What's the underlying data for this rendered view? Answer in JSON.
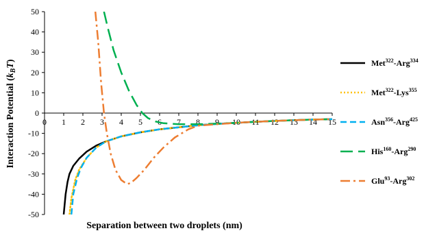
{
  "chart_data": {
    "type": "line",
    "title": "",
    "xlabel": "Separation between two droplets (nm)",
    "ylabel": "Interaction Potential (k_B T)",
    "ylabel_parts": {
      "main": "Interaction Potential (",
      "italic": "k",
      "sub": "B",
      "italic2": "T",
      "close": ")"
    },
    "xlim": [
      0,
      15
    ],
    "ylim": [
      -50,
      50
    ],
    "x_ticks": [
      "0",
      "1",
      "2",
      "3",
      "4",
      "5",
      "6",
      "7",
      "8",
      "9",
      "10",
      "11",
      "12",
      "13",
      "14",
      "15"
    ],
    "y_ticks": [
      "50",
      "40",
      "30",
      "20",
      "10",
      "0",
      "-10",
      "-20",
      "-30",
      "-40",
      "-50"
    ],
    "grid": false,
    "legend_position": "right",
    "series": [
      {
        "name": "Met322-Arg334",
        "label_parts": [
          "Met",
          "322",
          "-Arg",
          "334"
        ],
        "color": "#000000",
        "style": "solid",
        "x": [
          1.0,
          1.1,
          1.2,
          1.3,
          1.5,
          1.8,
          2.2,
          2.7,
          3.2,
          4,
          5,
          6,
          7,
          8,
          9,
          10,
          11,
          12,
          13,
          14,
          15
        ],
        "y": [
          -50,
          -40,
          -34,
          -30,
          -26,
          -22.5,
          -19,
          -16,
          -14,
          -11.5,
          -9.5,
          -8,
          -7,
          -6,
          -5.3,
          -4.8,
          -4.3,
          -3.9,
          -3.5,
          -3.2,
          -3.0
        ]
      },
      {
        "name": "Met322-Lys355",
        "label_parts": [
          "Met",
          "322",
          "-Lys",
          "355"
        ],
        "color": "#FFC000",
        "style": "dotted",
        "x": [
          1.3,
          1.4,
          1.6,
          1.8,
          2.2,
          2.7,
          3.2,
          4,
          5,
          6,
          7,
          8,
          9,
          10,
          11,
          12,
          13,
          14,
          15
        ],
        "y": [
          -50,
          -42,
          -33,
          -28,
          -22,
          -17,
          -14,
          -11.5,
          -9.5,
          -8,
          -7,
          -6,
          -5.3,
          -4.8,
          -4.3,
          -3.9,
          -3.5,
          -3.2,
          -3.0
        ]
      },
      {
        "name": "Asn356-Arg425",
        "label_parts": [
          "Asn",
          "356",
          "-Arg",
          "425"
        ],
        "color": "#00B0F0",
        "style": "dashed",
        "x": [
          1.4,
          1.5,
          1.7,
          1.9,
          2.2,
          2.7,
          3.2,
          4,
          5,
          6,
          7,
          8,
          9,
          10,
          11,
          12,
          13,
          14,
          15
        ],
        "y": [
          -50,
          -40,
          -32,
          -27,
          -22,
          -17,
          -14,
          -11.5,
          -9.5,
          -8,
          -7,
          -6,
          -5.3,
          -4.8,
          -4.3,
          -3.9,
          -3.5,
          -3.2,
          -3.0
        ]
      },
      {
        "name": "His160-Arg290",
        "label_parts": [
          "His",
          "160",
          "-Arg",
          "290"
        ],
        "color": "#00B050",
        "style": "longdash",
        "x": [
          3.1,
          3.3,
          3.6,
          4,
          4.4,
          4.8,
          5.1,
          5.4,
          5.8,
          6.2,
          7,
          8,
          9,
          10,
          11,
          12,
          13,
          14,
          15
        ],
        "y": [
          50,
          42,
          31,
          20,
          11,
          4,
          0,
          -2.5,
          -4.2,
          -5,
          -5.5,
          -5.5,
          -5.2,
          -4.8,
          -4.3,
          -3.9,
          -3.5,
          -3.2,
          -3.0
        ]
      },
      {
        "name": "Glu93-Arg302",
        "label_parts": [
          "Glu",
          "93",
          "-Arg",
          "302"
        ],
        "color": "#ED7D31",
        "style": "dashdot",
        "x": [
          2.65,
          2.8,
          2.95,
          3.1,
          3.25,
          3.45,
          3.7,
          4.0,
          4.3,
          4.5,
          4.8,
          5.2,
          5.7,
          6.2,
          6.8,
          7.5,
          8,
          9,
          10,
          11,
          12,
          13,
          14,
          15
        ],
        "y": [
          50,
          35,
          15,
          0,
          -10,
          -20,
          -28,
          -33,
          -35,
          -34.5,
          -32,
          -28,
          -22,
          -17,
          -12,
          -8,
          -6.2,
          -5.5,
          -4.8,
          -4.3,
          -3.9,
          -3.5,
          -3.2,
          -3.0
        ]
      }
    ]
  }
}
